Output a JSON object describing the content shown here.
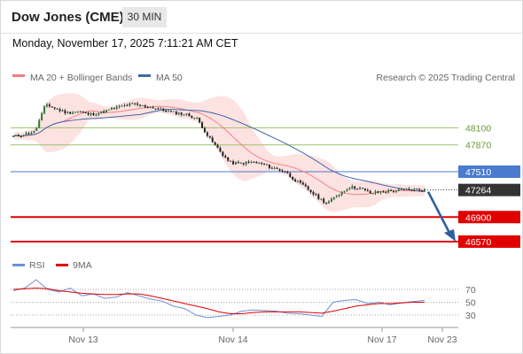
{
  "header": {
    "symbol": "Dow Jones (CME)",
    "timeframe": "30 MIN",
    "datetime": "Monday, November 17, 2025 7:11:21 AM CET"
  },
  "legend": {
    "ma20_bb": "MA 20 + Bollinger Bands",
    "ma50": "MA 50",
    "credit": "Research © 2025 Trading Central",
    "rsi": "RSI",
    "rsi_ma": "9MA"
  },
  "colors": {
    "ma20": "#f08080",
    "ma50": "#3f68a8",
    "bands": "#fde2e2",
    "support": "#e00000",
    "resistance_green": "#9bc26b",
    "pivot": "#4a7bd0",
    "last": "#333333",
    "rsi": "#6d8fd8",
    "rsi_ma": "#e00000"
  },
  "chart_data": [
    {
      "type": "candlestick",
      "title": "",
      "x_ticks": [
        "Nov 13",
        "Nov 14",
        "Nov 17",
        "Nov 23"
      ],
      "levels": [
        {
          "label": "48100",
          "value": 48100,
          "color": "#9bc26b"
        },
        {
          "label": "47870",
          "value": 47870,
          "color": "#9bc26b"
        },
        {
          "label": "47510",
          "value": 47510,
          "color": "#4a7bd0"
        },
        {
          "label": "47264",
          "value": 47264,
          "color": "#333333"
        },
        {
          "label": "46900",
          "value": 46900,
          "color": "#e00000"
        },
        {
          "label": "46570",
          "value": 46570,
          "color": "#e00000"
        }
      ],
      "close_path": [
        47980,
        48010,
        48050,
        48420,
        48350,
        48300,
        48320,
        48280,
        48300,
        48350,
        48390,
        48420,
        48390,
        48370,
        48330,
        48300,
        48280,
        48220,
        47980,
        47800,
        47630,
        47620,
        47640,
        47610,
        47560,
        47520,
        47400,
        47300,
        47180,
        47080,
        47200,
        47300,
        47290,
        47220,
        47240,
        47250,
        47265,
        47270,
        47264
      ],
      "forecast_path": [
        47264,
        46570
      ]
    },
    {
      "type": "line",
      "title": "RSI",
      "y_ticks": [
        70,
        50,
        30
      ],
      "ylim": [
        20,
        90
      ],
      "series": [
        {
          "name": "RSI",
          "values": [
            68,
            72,
            85,
            70,
            66,
            72,
            60,
            63,
            56,
            58,
            65,
            60,
            55,
            52,
            44,
            40,
            30,
            26,
            28,
            30,
            36,
            38,
            37,
            36,
            33,
            32,
            30,
            28,
            50,
            53,
            54,
            48,
            50,
            46,
            49,
            51,
            53
          ]
        },
        {
          "name": "9MA",
          "values": [
            70,
            71,
            72,
            71,
            68,
            66,
            64,
            63,
            62,
            62,
            63,
            63,
            60,
            56,
            52,
            48,
            44,
            40,
            35,
            32,
            32,
            34,
            35,
            35,
            35,
            35,
            34,
            33,
            36,
            40,
            44,
            46,
            48,
            48,
            49,
            50,
            50
          ]
        }
      ]
    }
  ]
}
